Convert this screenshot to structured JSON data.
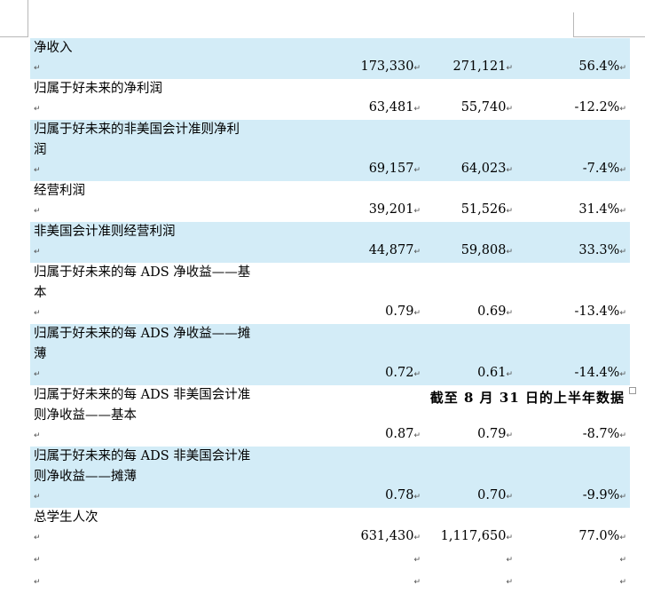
{
  "rows": [
    {
      "label": [
        "净收入"
      ],
      "v1": "173,330",
      "v2": "271,121",
      "v3": "56.4%",
      "shaded": true
    },
    {
      "label": [
        "归属于好未来的净利润"
      ],
      "v1": "63,481",
      "v2": "55,740",
      "v3": "-12.2%",
      "shaded": false
    },
    {
      "label": [
        "归属于好未来的非美国会计准则净利",
        "润"
      ],
      "v1": "69,157",
      "v2": "64,023",
      "v3": "-7.4%",
      "shaded": true
    },
    {
      "label": [
        "经营利润"
      ],
      "v1": "39,201",
      "v2": "51,526",
      "v3": "31.4%",
      "shaded": false
    },
    {
      "label": [
        "非美国会计准则经营利润"
      ],
      "v1": "44,877",
      "v2": "59,808",
      "v3": "33.3%",
      "shaded": true
    },
    {
      "label": [
        "归属于好未来的每 ADS 净收益——基",
        "本"
      ],
      "v1": "0.79",
      "v2": "0.69",
      "v3": "-13.4%",
      "shaded": false
    },
    {
      "label": [
        "归属于好未来的每 ADS 净收益——摊",
        "薄"
      ],
      "v1": "0.72",
      "v2": "0.61",
      "v3": "-14.4%",
      "shaded": true
    },
    {
      "label": [
        "归属于好未来的每 ADS 非美国会计准",
        "则净收益——基本"
      ],
      "v1": "0.87",
      "v2": "0.79",
      "v3": "-8.7%",
      "shaded": false
    },
    {
      "label": [
        "归属于好未来的每 ADS 非美国会计准",
        "则净收益——摊薄"
      ],
      "v1": "0.78",
      "v2": "0.70",
      "v3": "-9.9%",
      "shaded": true
    },
    {
      "label": [
        "总学生人次"
      ],
      "v1": "631,430",
      "v2": "1,117,650",
      "v3": "77.0%",
      "shaded": false
    }
  ],
  "footnote": "截至 8 月 31 日的上半年数据",
  "marks": {
    "return": "↵"
  }
}
